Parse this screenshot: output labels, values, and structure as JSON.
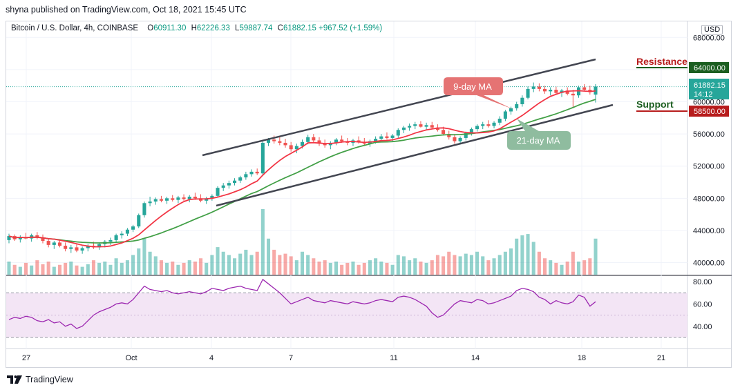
{
  "caption": "shyna published on TradingView.com, Oct 18, 2021 15:45 UTC",
  "legend": {
    "symbol": "Bitcoin / U.S. Dollar, 4h, COINBASE",
    "o_label": "O",
    "o": "60911.30",
    "h_label": "H",
    "h": "62226.33",
    "l_label": "L",
    "l": "59887.74",
    "c_label": "C",
    "c": "61882.15",
    "change": "+967.52 (+1.59%)"
  },
  "currency": "USD",
  "price_axis_labels": [
    "68000.00",
    "64000.00",
    "61882.15",
    "60000.00",
    "58500.00",
    "56000.00",
    "52000.00",
    "48000.00",
    "44000.00",
    "40000.00"
  ],
  "tags": {
    "resistance_value": "64000.00",
    "last_price": "61882.15",
    "countdown": "14:12",
    "support_value": "58500.00"
  },
  "annotations": {
    "resistance": "Resistance",
    "support": "Support",
    "ma9": "9-day MA",
    "ma21": "21-day MA"
  },
  "rsi_axis_labels": [
    "80.00",
    "60.00",
    "40.00"
  ],
  "time_labels": [
    "27",
    "Oct",
    "4",
    "7",
    "11",
    "14",
    "18",
    "21"
  ],
  "footer": "TradingView",
  "colors": {
    "up": "#26a69a",
    "down": "#ef5350",
    "ma9": "#f23645",
    "ma21": "#43a047",
    "rsi": "#9c27b0",
    "rsi_band": "#f3e5f5",
    "resistance_tag": "#1b5e20",
    "support_tag": "#b71c1c",
    "last_tag": "#26a69a"
  },
  "chart_data": {
    "type": "candlestick",
    "symbol": "Bitcoin / U.S. Dollar",
    "interval": "4h",
    "ylim": [
      38500,
      70000
    ],
    "x_ticks": [
      "27",
      "Oct",
      "4",
      "7",
      "11",
      "14",
      "18",
      "21"
    ],
    "candles": [
      [
        42800,
        43600,
        42400,
        43300,
        1
      ],
      [
        43300,
        43500,
        42700,
        42900,
        0
      ],
      [
        42900,
        43400,
        42500,
        43200,
        1
      ],
      [
        43200,
        43700,
        42900,
        43000,
        0
      ],
      [
        43000,
        43600,
        42600,
        43400,
        1
      ],
      [
        43400,
        43800,
        42900,
        43100,
        0
      ],
      [
        43100,
        43500,
        42400,
        42700,
        0
      ],
      [
        42700,
        43000,
        41900,
        42200,
        0
      ],
      [
        42200,
        42700,
        41700,
        42500,
        1
      ],
      [
        42500,
        42900,
        41900,
        42100,
        0
      ],
      [
        42100,
        42500,
        41400,
        41700,
        0
      ],
      [
        41700,
        42200,
        41200,
        41900,
        1
      ],
      [
        41900,
        42400,
        41300,
        41500,
        0
      ],
      [
        41500,
        42000,
        41100,
        41800,
        1
      ],
      [
        41800,
        42300,
        41400,
        42100,
        1
      ],
      [
        42100,
        42600,
        41700,
        41900,
        0
      ],
      [
        41900,
        42500,
        41600,
        42300,
        1
      ],
      [
        42300,
        42800,
        41900,
        42600,
        1
      ],
      [
        42600,
        43100,
        42200,
        42800,
        1
      ],
      [
        42800,
        43600,
        42500,
        43400,
        1
      ],
      [
        43400,
        43900,
        43000,
        43600,
        1
      ],
      [
        43600,
        44300,
        43300,
        44100,
        1
      ],
      [
        44100,
        44700,
        43800,
        44500,
        1
      ],
      [
        44500,
        46100,
        44300,
        45900,
        1
      ],
      [
        45900,
        47600,
        45600,
        47400,
        1
      ],
      [
        47400,
        48200,
        47000,
        47600,
        1
      ],
      [
        47600,
        48100,
        47200,
        47900,
        1
      ],
      [
        47900,
        48300,
        47500,
        47700,
        0
      ],
      [
        47700,
        48200,
        47300,
        48000,
        1
      ],
      [
        48000,
        48400,
        47600,
        47800,
        0
      ],
      [
        47800,
        48300,
        47400,
        48100,
        1
      ],
      [
        48100,
        48500,
        47700,
        47900,
        0
      ],
      [
        47900,
        48400,
        47500,
        48200,
        1
      ],
      [
        48200,
        48700,
        47800,
        48000,
        0
      ],
      [
        48000,
        48500,
        47500,
        47700,
        0
      ],
      [
        47700,
        48200,
        47300,
        48000,
        1
      ],
      [
        48000,
        48500,
        47700,
        48300,
        1
      ],
      [
        48300,
        49500,
        48100,
        49300,
        1
      ],
      [
        49300,
        49900,
        48900,
        49600,
        1
      ],
      [
        49600,
        50200,
        49200,
        49900,
        1
      ],
      [
        49900,
        50500,
        49600,
        50200,
        1
      ],
      [
        50200,
        50800,
        49900,
        50600,
        1
      ],
      [
        50600,
        51300,
        50300,
        51000,
        1
      ],
      [
        51000,
        51600,
        50700,
        51300,
        1
      ],
      [
        51300,
        51700,
        50900,
        51100,
        0
      ],
      [
        51100,
        55200,
        50900,
        54900,
        1
      ],
      [
        54900,
        55500,
        54500,
        55300,
        1
      ],
      [
        55300,
        55800,
        54800,
        55100,
        0
      ],
      [
        55100,
        55600,
        54600,
        54900,
        0
      ],
      [
        54900,
        55400,
        54300,
        54600,
        0
      ],
      [
        54600,
        55000,
        53800,
        54100,
        0
      ],
      [
        54100,
        54800,
        53600,
        54500,
        1
      ],
      [
        54500,
        55300,
        54200,
        55000,
        1
      ],
      [
        55000,
        55900,
        54700,
        55600,
        1
      ],
      [
        55600,
        56000,
        54900,
        55200,
        0
      ],
      [
        55200,
        55600,
        54500,
        54800,
        0
      ],
      [
        54800,
        55300,
        54300,
        54600,
        0
      ],
      [
        54600,
        55100,
        54100,
        54900,
        1
      ],
      [
        54900,
        55500,
        54600,
        55300,
        1
      ],
      [
        55300,
        55800,
        54900,
        55100,
        0
      ],
      [
        55100,
        55500,
        54600,
        54900,
        0
      ],
      [
        54900,
        55400,
        54500,
        55200,
        1
      ],
      [
        55200,
        55700,
        54800,
        55000,
        0
      ],
      [
        55000,
        55500,
        54500,
        54800,
        0
      ],
      [
        54800,
        55300,
        54400,
        55100,
        1
      ],
      [
        55100,
        55700,
        54800,
        55400,
        1
      ],
      [
        55400,
        56000,
        55100,
        55700,
        1
      ],
      [
        55700,
        56200,
        55300,
        55500,
        0
      ],
      [
        55500,
        56000,
        55100,
        55800,
        1
      ],
      [
        55800,
        56700,
        55500,
        56500,
        1
      ],
      [
        56500,
        57000,
        56100,
        56800,
        1
      ],
      [
        56800,
        57300,
        56400,
        57000,
        1
      ],
      [
        57000,
        57500,
        56600,
        57200,
        1
      ],
      [
        57200,
        57600,
        56800,
        56900,
        0
      ],
      [
        56900,
        57400,
        56500,
        57100,
        1
      ],
      [
        57100,
        57500,
        56600,
        56800,
        0
      ],
      [
        56800,
        57200,
        56300,
        56500,
        0
      ],
      [
        56500,
        56900,
        55800,
        56000,
        0
      ],
      [
        56000,
        56400,
        55300,
        55600,
        0
      ],
      [
        55600,
        56000,
        54800,
        55100,
        0
      ],
      [
        55100,
        55700,
        54700,
        55500,
        1
      ],
      [
        55500,
        56300,
        55200,
        56100,
        1
      ],
      [
        56100,
        56800,
        55800,
        56600,
        1
      ],
      [
        56600,
        57200,
        56300,
        57000,
        1
      ],
      [
        57000,
        57500,
        56600,
        57200,
        1
      ],
      [
        57200,
        57700,
        56800,
        57000,
        0
      ],
      [
        57000,
        57600,
        56700,
        57400,
        1
      ],
      [
        57400,
        58200,
        57100,
        57900,
        1
      ],
      [
        57900,
        59000,
        57600,
        58800,
        1
      ],
      [
        58800,
        59400,
        58400,
        59200,
        1
      ],
      [
        59200,
        60000,
        58900,
        59700,
        1
      ],
      [
        59700,
        60800,
        59400,
        60500,
        1
      ],
      [
        60500,
        61900,
        60300,
        61600,
        1
      ],
      [
        61600,
        62400,
        61200,
        61900,
        1
      ],
      [
        61900,
        62300,
        61300,
        61600,
        0
      ],
      [
        61600,
        62000,
        61000,
        61300,
        0
      ],
      [
        61300,
        61800,
        60800,
        61500,
        1
      ],
      [
        61500,
        61900,
        60900,
        61100,
        0
      ],
      [
        61100,
        61600,
        60600,
        61400,
        1
      ],
      [
        61400,
        61800,
        60800,
        61000,
        0
      ],
      [
        61000,
        61500,
        59200,
        60800,
        0
      ],
      [
        60800,
        62000,
        60500,
        61800,
        1
      ],
      [
        61800,
        62200,
        61300,
        61500,
        0
      ],
      [
        61500,
        62000,
        60900,
        61200,
        0
      ],
      [
        60900,
        62200,
        59900,
        61900,
        1
      ]
    ],
    "volume_relative": [
      0.2,
      0.15,
      0.12,
      0.18,
      0.14,
      0.22,
      0.16,
      0.2,
      0.12,
      0.15,
      0.18,
      0.2,
      0.14,
      0.12,
      0.16,
      0.22,
      0.18,
      0.2,
      0.15,
      0.25,
      0.18,
      0.22,
      0.3,
      0.4,
      0.55,
      0.35,
      0.28,
      0.22,
      0.18,
      0.2,
      0.15,
      0.18,
      0.22,
      0.2,
      0.25,
      0.18,
      0.3,
      0.42,
      0.35,
      0.3,
      0.25,
      0.32,
      0.38,
      0.3,
      0.35,
      1.0,
      0.55,
      0.38,
      0.3,
      0.32,
      0.28,
      0.22,
      0.35,
      0.3,
      0.25,
      0.2,
      0.22,
      0.18,
      0.2,
      0.15,
      0.18,
      0.2,
      0.15,
      0.18,
      0.22,
      0.25,
      0.2,
      0.18,
      0.15,
      0.3,
      0.28,
      0.22,
      0.25,
      0.2,
      0.18,
      0.22,
      0.3,
      0.28,
      0.35,
      0.3,
      0.28,
      0.32,
      0.3,
      0.35,
      0.28,
      0.22,
      0.25,
      0.3,
      0.35,
      0.4,
      0.55,
      0.6,
      0.62,
      0.5,
      0.35,
      0.25,
      0.22,
      0.18,
      0.15,
      0.2,
      0.35,
      0.2,
      0.22,
      0.25,
      0.55
    ],
    "rsi": [
      46,
      48,
      47,
      49,
      48,
      45,
      44,
      46,
      43,
      44,
      40,
      42,
      38,
      40,
      45,
      50,
      53,
      55,
      57,
      60,
      61,
      60,
      64,
      70,
      76,
      73,
      72,
      71,
      72,
      70,
      69,
      70,
      71,
      70,
      69,
      71,
      74,
      73,
      72,
      74,
      75,
      76,
      74,
      73,
      72,
      82,
      78,
      74,
      70,
      65,
      60,
      62,
      64,
      66,
      63,
      62,
      61,
      63,
      62,
      61,
      60,
      62,
      61,
      60,
      61,
      63,
      64,
      63,
      62,
      66,
      67,
      66,
      64,
      61,
      58,
      52,
      48,
      50,
      55,
      60,
      63,
      62,
      61,
      64,
      63,
      60,
      61,
      63,
      65,
      67,
      72,
      74,
      73,
      71,
      66,
      64,
      60,
      63,
      61,
      60,
      62,
      68,
      66,
      58,
      62
    ],
    "ma9_label": "9-day MA",
    "ma21_label": "21-day MA",
    "resistance": 64000,
    "support": 58500,
    "last": 61882.15
  }
}
